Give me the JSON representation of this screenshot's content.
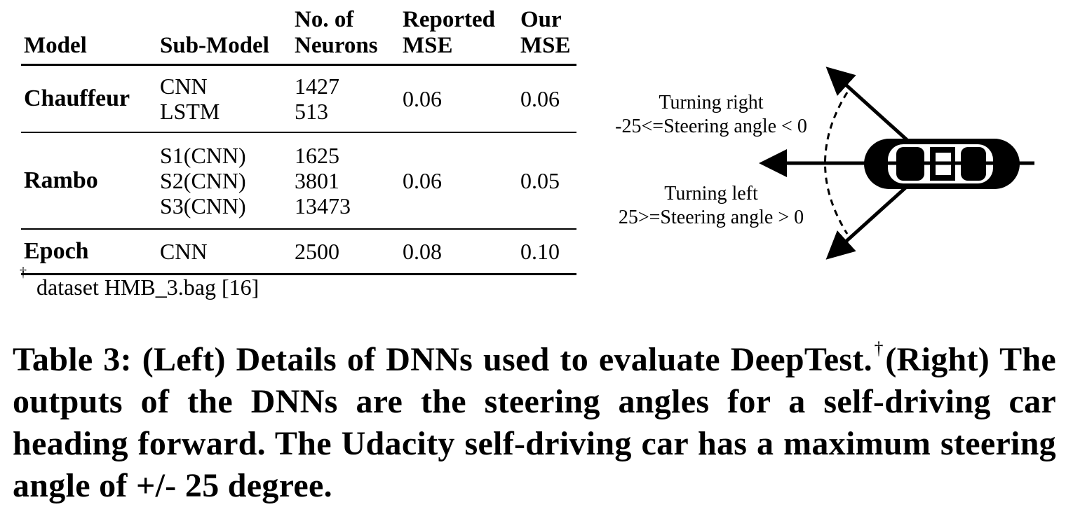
{
  "table": {
    "headers": {
      "model": "Model",
      "submodel": "Sub-Model",
      "neurons_l1": "No. of",
      "neurons_l2": "Neurons",
      "reported_l1": "Reported",
      "reported_l2": "MSE",
      "our_l1": "Our",
      "our_l2": "MSE"
    },
    "rows": [
      {
        "model": "Chauffeur",
        "submodels": [
          "CNN",
          "LSTM"
        ],
        "neurons": [
          "1427",
          "513"
        ],
        "reported_mse": "0.06",
        "our_mse": "0.06"
      },
      {
        "model": "Rambo",
        "submodels": [
          "S1(CNN)",
          "S2(CNN)",
          "S3(CNN)"
        ],
        "neurons": [
          "1625",
          "3801",
          "13473"
        ],
        "reported_mse": "0.06",
        "our_mse": "0.05"
      },
      {
        "model": "Epoch",
        "submodels": [
          "CNN"
        ],
        "neurons": [
          "2500"
        ],
        "reported_mse": "0.08",
        "our_mse": "0.10"
      }
    ]
  },
  "footnote": {
    "mark": "†",
    "text": "dataset HMB_3.bag [16]"
  },
  "caption": {
    "part1": "Table 3: (Left) Details of DNNs used to evaluate DeepTest.",
    "mark": "†",
    "part2": "(Right) The outputs of the DNNs are the steering angles for a self-driving car heading forward. The Udacity self-driving car has a maximum steering angle of +/- 25 degree."
  },
  "diagram": {
    "right_line1": "Turning right",
    "right_line2": "-25<=Steering angle < 0",
    "left_line1": "Turning left",
    "left_line2": "25>=Steering angle > 0",
    "car_icon": "car-top-view-icon"
  }
}
